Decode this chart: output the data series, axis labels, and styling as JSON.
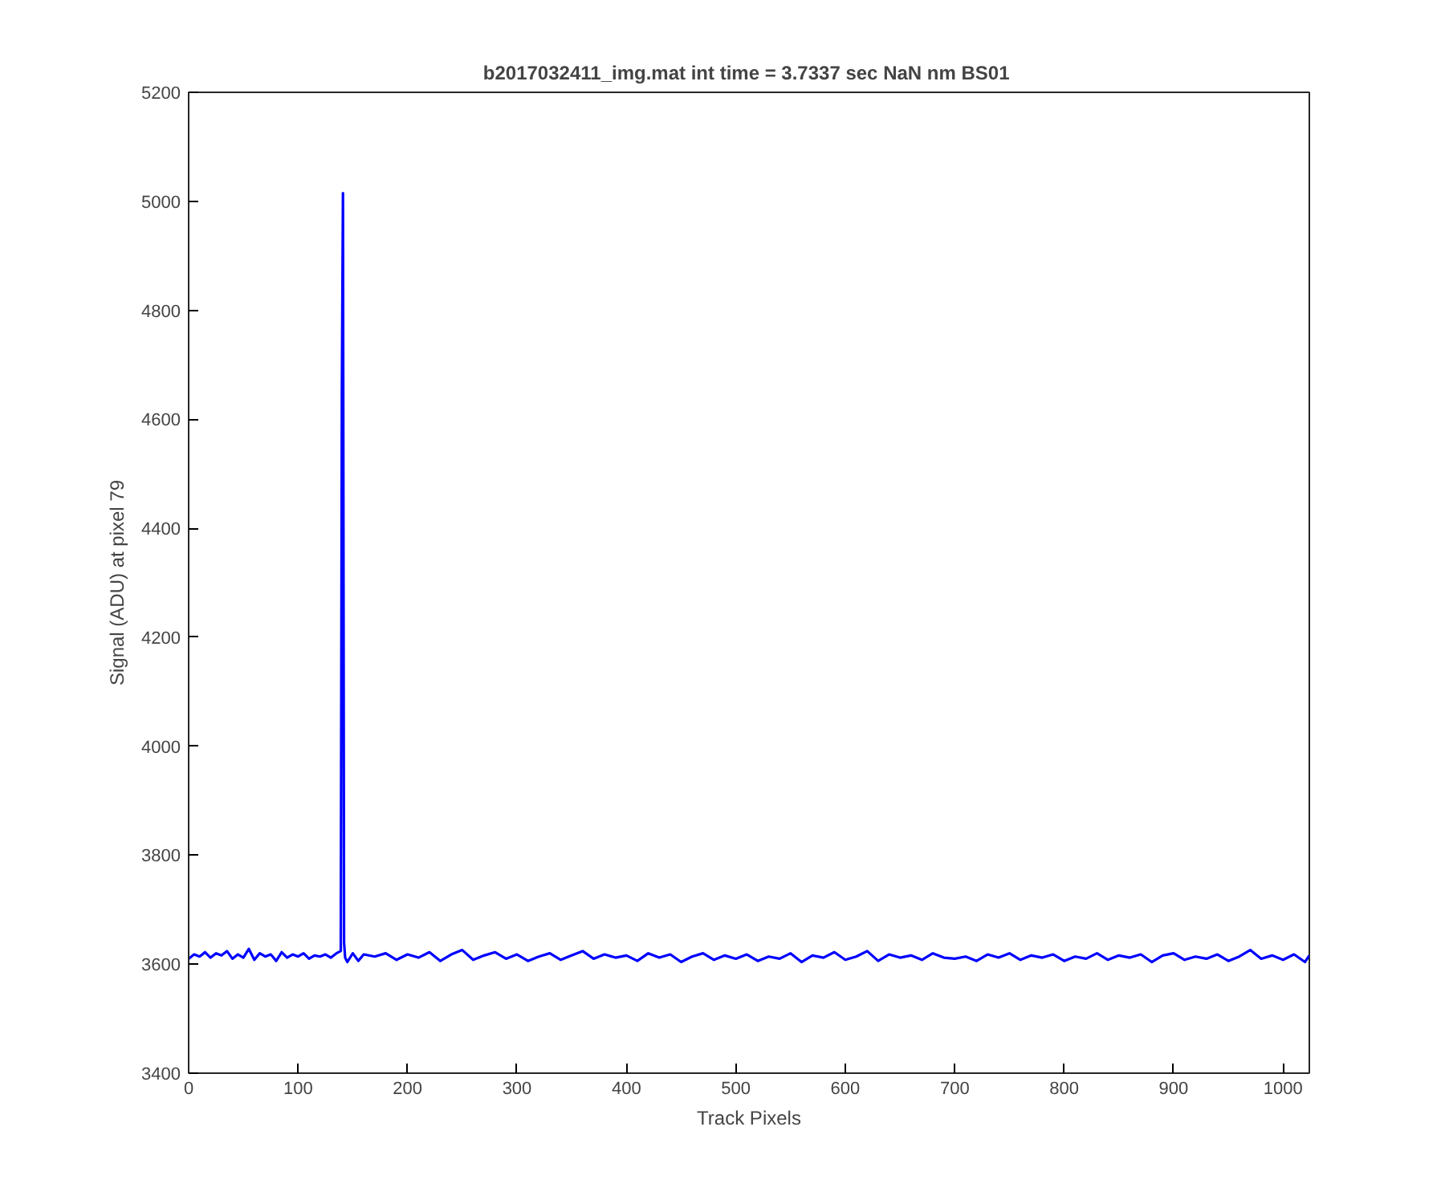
{
  "chart_data": {
    "type": "line",
    "title": "b2017032411_img.mat int time = 3.7337 sec  NaN nm BS01",
    "xlabel": "Track Pixels",
    "ylabel": "Signal (ADU) at pixel 79",
    "series": [
      {
        "color": "#0000ff",
        "x": [
          0,
          5,
          10,
          15,
          20,
          25,
          30,
          35,
          40,
          45,
          50,
          55,
          60,
          65,
          70,
          75,
          80,
          85,
          90,
          95,
          100,
          105,
          110,
          115,
          120,
          125,
          130,
          135,
          139,
          140,
          141,
          142,
          143,
          145,
          150,
          155,
          160,
          170,
          180,
          190,
          200,
          210,
          220,
          230,
          240,
          250,
          260,
          270,
          280,
          290,
          300,
          310,
          320,
          330,
          340,
          350,
          360,
          370,
          380,
          390,
          400,
          410,
          420,
          430,
          440,
          450,
          460,
          470,
          480,
          490,
          500,
          510,
          520,
          530,
          540,
          550,
          560,
          570,
          580,
          590,
          600,
          610,
          620,
          630,
          640,
          650,
          660,
          670,
          680,
          690,
          700,
          710,
          720,
          730,
          740,
          750,
          760,
          770,
          780,
          790,
          800,
          810,
          820,
          830,
          840,
          850,
          860,
          870,
          880,
          890,
          900,
          910,
          920,
          930,
          940,
          950,
          960,
          970,
          980,
          990,
          1000,
          1010,
          1020,
          1024
        ],
        "values": [
          3610,
          3618,
          3614,
          3622,
          3612,
          3620,
          3616,
          3624,
          3610,
          3618,
          3612,
          3628,
          3608,
          3620,
          3614,
          3618,
          3606,
          3622,
          3612,
          3618,
          3614,
          3620,
          3610,
          3616,
          3614,
          3618,
          3612,
          3620,
          3624,
          4650,
          5015,
          3640,
          3612,
          3604,
          3620,
          3606,
          3618,
          3614,
          3620,
          3608,
          3618,
          3612,
          3622,
          3606,
          3618,
          3626,
          3608,
          3616,
          3622,
          3610,
          3618,
          3606,
          3614,
          3620,
          3608,
          3616,
          3624,
          3610,
          3618,
          3612,
          3616,
          3606,
          3620,
          3612,
          3618,
          3604,
          3614,
          3620,
          3608,
          3616,
          3610,
          3618,
          3606,
          3614,
          3610,
          3620,
          3604,
          3616,
          3612,
          3622,
          3608,
          3614,
          3624,
          3606,
          3618,
          3612,
          3616,
          3608,
          3620,
          3612,
          3610,
          3614,
          3606,
          3618,
          3612,
          3620,
          3608,
          3616,
          3612,
          3618,
          3606,
          3614,
          3610,
          3620,
          3608,
          3616,
          3612,
          3618,
          3604,
          3616,
          3620,
          3608,
          3614,
          3610,
          3618,
          3606,
          3614,
          3626,
          3610,
          3616,
          3608,
          3618,
          3604,
          3616
        ]
      }
    ],
    "xlim": [
      0,
      1024
    ],
    "xticks": [
      0,
      100,
      200,
      300,
      400,
      500,
      600,
      700,
      800,
      900,
      1000
    ],
    "ylim": [
      3400,
      5200
    ],
    "yticks": [
      3400,
      3600,
      3800,
      4000,
      4200,
      4400,
      4600,
      4800,
      5000,
      5200
    ],
    "grid": false,
    "marker": "none",
    "line_style": "solid"
  }
}
